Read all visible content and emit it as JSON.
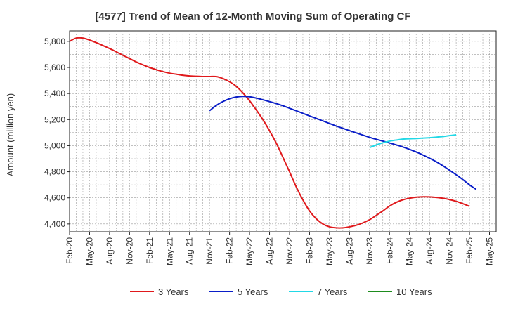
{
  "chart_data": {
    "type": "line",
    "title": "[4577]  Trend of Mean of 12-Month Moving Sum of Operating CF",
    "xlabel": "",
    "ylabel": "Amount (million yen)",
    "ylim": [
      4340,
      5880
    ],
    "yticks": [
      4400,
      4600,
      4800,
      5000,
      5200,
      5400,
      5600,
      5800
    ],
    "ytick_labels": [
      "4,400",
      "4,600",
      "4,800",
      "5,000",
      "5,200",
      "5,400",
      "5,600",
      "5,800"
    ],
    "x_start": "Feb-20",
    "x_end": "May-25",
    "x_count": 64,
    "x_ticks": [
      "Feb-20",
      "May-20",
      "Aug-20",
      "Nov-20",
      "Feb-21",
      "May-21",
      "Aug-21",
      "Nov-21",
      "Feb-22",
      "May-22",
      "Aug-22",
      "Nov-22",
      "Feb-23",
      "May-23",
      "Aug-23",
      "Nov-23",
      "Feb-24",
      "May-24",
      "Aug-24",
      "Nov-24",
      "Feb-25",
      "May-25"
    ],
    "grid": true,
    "legend_position": "bottom",
    "series": [
      {
        "name": "3 Years",
        "color": "#e0191c",
        "start_index": 0,
        "values": [
          5800,
          5825,
          5825,
          5810,
          5790,
          5768,
          5745,
          5720,
          5693,
          5668,
          5642,
          5620,
          5600,
          5583,
          5568,
          5556,
          5548,
          5540,
          5535,
          5532,
          5530,
          5530,
          5530,
          5515,
          5490,
          5455,
          5405,
          5345,
          5275,
          5200,
          5115,
          5020,
          4912,
          4800,
          4685,
          4585,
          4500,
          4440,
          4400,
          4378,
          4370,
          4370,
          4378,
          4390,
          4408,
          4432,
          4465,
          4500,
          4537,
          4565,
          4585,
          4597,
          4605,
          4608,
          4607,
          4603,
          4597,
          4587,
          4573,
          4555,
          4535
        ]
      },
      {
        "name": "5 Years",
        "color": "#0a1ec8",
        "start_index": 21,
        "values": [
          5268,
          5308,
          5338,
          5360,
          5373,
          5378,
          5375,
          5365,
          5352,
          5338,
          5323,
          5306,
          5287,
          5268,
          5248,
          5228,
          5209,
          5190,
          5170,
          5151,
          5133,
          5115,
          5098,
          5081,
          5064,
          5049,
          5035,
          5021,
          5006,
          4990,
          4972,
          4952,
          4929,
          4904,
          4877,
          4846,
          4812,
          4777,
          4740,
          4700,
          4665
        ]
      },
      {
        "name": "7 Years",
        "color": "#22d8e6",
        "start_index": 45,
        "values": [
          4985,
          5005,
          5022,
          5035,
          5043,
          5050,
          5053,
          5055,
          5058,
          5061,
          5065,
          5070,
          5077,
          5083
        ]
      },
      {
        "name": "10 Years",
        "color": "#1e8c1e",
        "start_index": 0,
        "values": []
      }
    ]
  }
}
